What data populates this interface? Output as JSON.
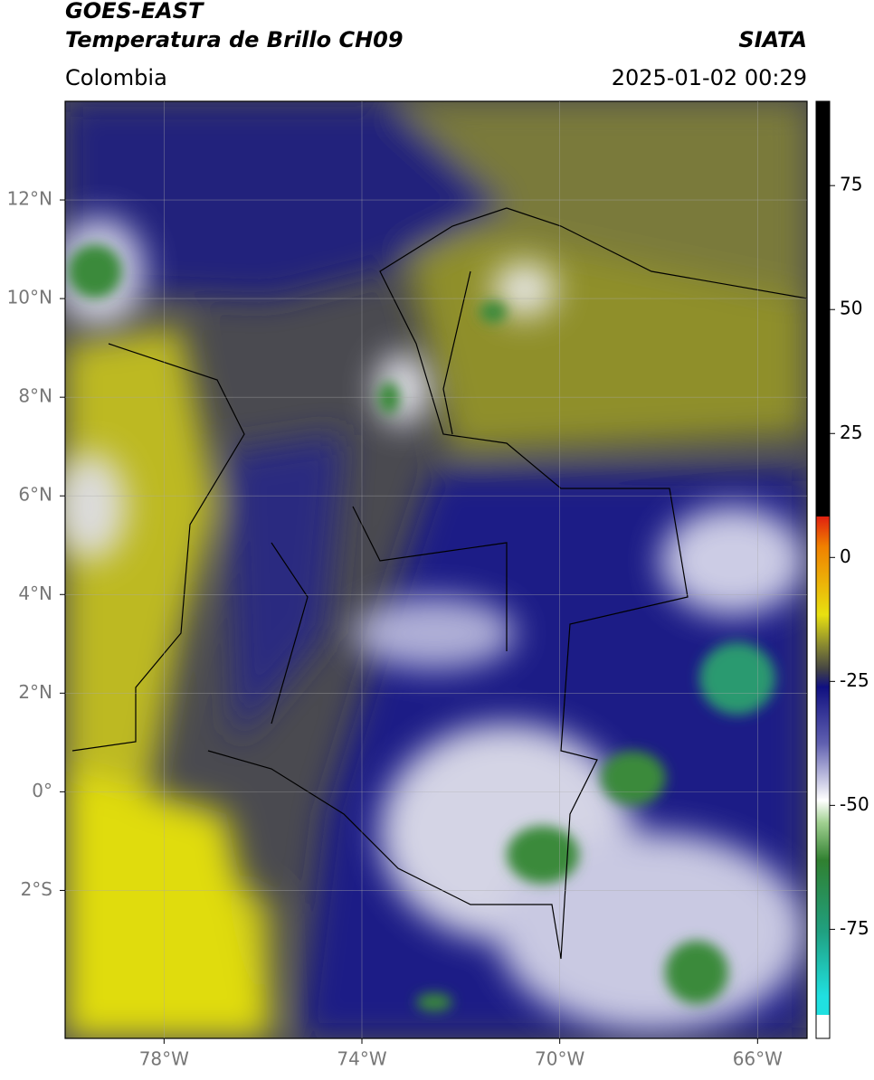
{
  "header": {
    "title_line1": "GOES-EAST",
    "title_line2": "Temperatura de Brillo CH09",
    "source": "SIATA",
    "region": "Colombia",
    "timestamp": "2025-01-02 00:29"
  },
  "map": {
    "lon_range": [
      -80,
      -65
    ],
    "lat_range": [
      -5,
      14
    ],
    "lon_ticks": [
      {
        "value": -78,
        "label": "78°W"
      },
      {
        "value": -74,
        "label": "74°W"
      },
      {
        "value": -70,
        "label": "70°W"
      },
      {
        "value": -66,
        "label": "66°W"
      }
    ],
    "lat_ticks": [
      {
        "value": 12,
        "label": "12°N"
      },
      {
        "value": 10,
        "label": "10°N"
      },
      {
        "value": 8,
        "label": "8°N"
      },
      {
        "value": 6,
        "label": "6°N"
      },
      {
        "value": 4,
        "label": "4°N"
      },
      {
        "value": 2,
        "label": "2°N"
      },
      {
        "value": 0,
        "label": "0°"
      },
      {
        "value": -2,
        "label": "2°S"
      }
    ]
  },
  "colorbar": {
    "range": [
      -97,
      92
    ],
    "ticks": [
      75,
      50,
      25,
      0,
      -25,
      -50,
      -75
    ]
  }
}
